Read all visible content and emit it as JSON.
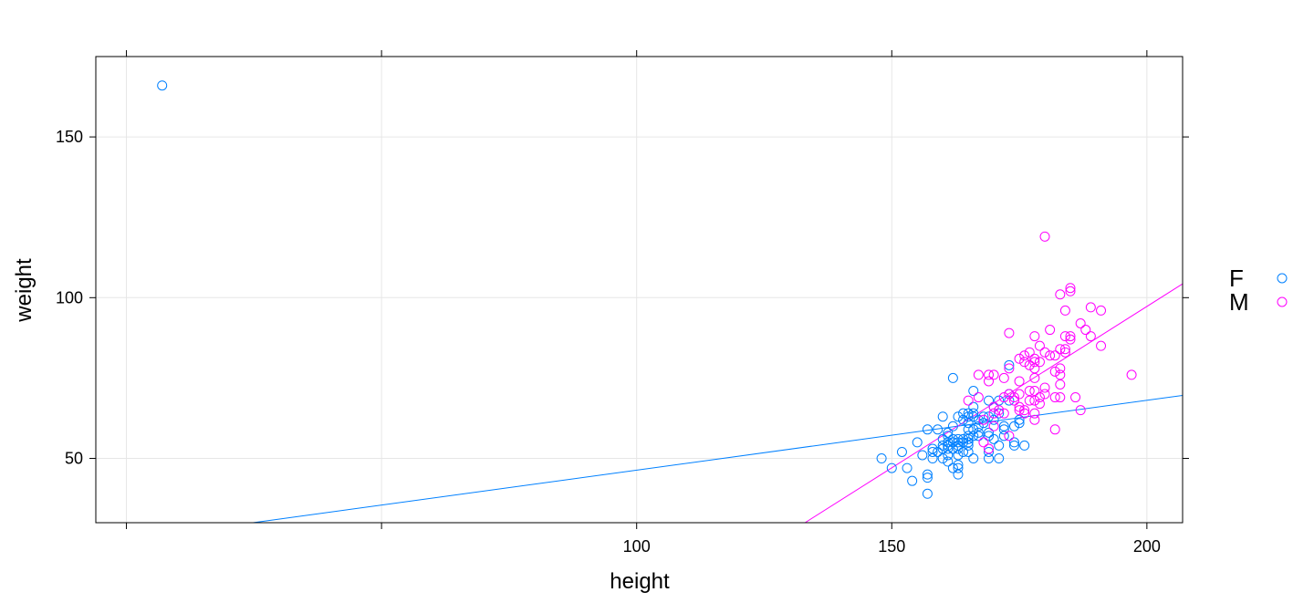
{
  "chart_data": {
    "type": "scatter",
    "xlabel": "height",
    "ylabel": "weight",
    "xlim": [
      -6,
      207
    ],
    "ylim": [
      30,
      175
    ],
    "xticks": [
      100,
      150,
      200
    ],
    "yticks": [
      50,
      100,
      150
    ],
    "xtick_marks": [
      0,
      50,
      100,
      150,
      200
    ],
    "grid": true,
    "legend_position": "right",
    "series": [
      {
        "name": "F",
        "color": "#0080ff",
        "points": [
          [
            7,
            166
          ],
          [
            148,
            50
          ],
          [
            150,
            47
          ],
          [
            152,
            52
          ],
          [
            153,
            47
          ],
          [
            154,
            43
          ],
          [
            155,
            55
          ],
          [
            156,
            51
          ],
          [
            157,
            59
          ],
          [
            157,
            45
          ],
          [
            157,
            44
          ],
          [
            157,
            39
          ],
          [
            158,
            53
          ],
          [
            158,
            52
          ],
          [
            158,
            50
          ],
          [
            159,
            59
          ],
          [
            159,
            52
          ],
          [
            160,
            63
          ],
          [
            160,
            56
          ],
          [
            160,
            54
          ],
          [
            160,
            53
          ],
          [
            160,
            50
          ],
          [
            161,
            58
          ],
          [
            161,
            57
          ],
          [
            161,
            55
          ],
          [
            161,
            54
          ],
          [
            161,
            53
          ],
          [
            161,
            51
          ],
          [
            161,
            49
          ],
          [
            162,
            75
          ],
          [
            162,
            60
          ],
          [
            162,
            56
          ],
          [
            162,
            55
          ],
          [
            162,
            53
          ],
          [
            162,
            47
          ],
          [
            163,
            63
          ],
          [
            163,
            56
          ],
          [
            163,
            55
          ],
          [
            163,
            54
          ],
          [
            163,
            53
          ],
          [
            163,
            51
          ],
          [
            163,
            48
          ],
          [
            163,
            47
          ],
          [
            163,
            45
          ],
          [
            164,
            64
          ],
          [
            164,
            62
          ],
          [
            164,
            56
          ],
          [
            164,
            55
          ],
          [
            164,
            52
          ],
          [
            165,
            64
          ],
          [
            165,
            63
          ],
          [
            165,
            61
          ],
          [
            165,
            59
          ],
          [
            165,
            57
          ],
          [
            165,
            56
          ],
          [
            165,
            55
          ],
          [
            165,
            54
          ],
          [
            165,
            52
          ],
          [
            166,
            71
          ],
          [
            166,
            66
          ],
          [
            166,
            64
          ],
          [
            166,
            63
          ],
          [
            166,
            59
          ],
          [
            166,
            57
          ],
          [
            166,
            50
          ],
          [
            167,
            62
          ],
          [
            167,
            60
          ],
          [
            167,
            58
          ],
          [
            167,
            57
          ],
          [
            168,
            63
          ],
          [
            168,
            61
          ],
          [
            169,
            68
          ],
          [
            169,
            63
          ],
          [
            169,
            58
          ],
          [
            169,
            57
          ],
          [
            169,
            52
          ],
          [
            169,
            50
          ],
          [
            170,
            66
          ],
          [
            170,
            62
          ],
          [
            170,
            56
          ],
          [
            171,
            68
          ],
          [
            171,
            64
          ],
          [
            171,
            54
          ],
          [
            171,
            50
          ],
          [
            172,
            60
          ],
          [
            172,
            59
          ],
          [
            172,
            57
          ],
          [
            173,
            79
          ],
          [
            173,
            70
          ],
          [
            173,
            68
          ],
          [
            174,
            60
          ],
          [
            174,
            55
          ],
          [
            174,
            54
          ],
          [
            175,
            62
          ],
          [
            175,
            61
          ],
          [
            176,
            54
          ]
        ],
        "fit": [
          -6,
          23.3,
          207,
          69.6
        ]
      },
      {
        "name": "M",
        "color": "#ff00ff",
        "points": [
          [
            165,
            68
          ],
          [
            167,
            76
          ],
          [
            167,
            69
          ],
          [
            168,
            55
          ],
          [
            168,
            62
          ],
          [
            169,
            76
          ],
          [
            169,
            74
          ],
          [
            169,
            53
          ],
          [
            170,
            76
          ],
          [
            170,
            66
          ],
          [
            170,
            64
          ],
          [
            170,
            60
          ],
          [
            171,
            65
          ],
          [
            172,
            75
          ],
          [
            172,
            69
          ],
          [
            172,
            64
          ],
          [
            173,
            89
          ],
          [
            173,
            78
          ],
          [
            173,
            70
          ],
          [
            173,
            57
          ],
          [
            174,
            69
          ],
          [
            174,
            68
          ],
          [
            175,
            81
          ],
          [
            175,
            74
          ],
          [
            175,
            70
          ],
          [
            175,
            66
          ],
          [
            175,
            65
          ],
          [
            176,
            82
          ],
          [
            176,
            80
          ],
          [
            176,
            65
          ],
          [
            176,
            64
          ],
          [
            177,
            83
          ],
          [
            177,
            79
          ],
          [
            177,
            71
          ],
          [
            177,
            68
          ],
          [
            178,
            88
          ],
          [
            178,
            81
          ],
          [
            178,
            80
          ],
          [
            178,
            78
          ],
          [
            178,
            75
          ],
          [
            178,
            71
          ],
          [
            178,
            68
          ],
          [
            178,
            64
          ],
          [
            178,
            62
          ],
          [
            179,
            85
          ],
          [
            179,
            80
          ],
          [
            179,
            69
          ],
          [
            179,
            67
          ],
          [
            180,
            119
          ],
          [
            180,
            83
          ],
          [
            180,
            72
          ],
          [
            180,
            70
          ],
          [
            181,
            90
          ],
          [
            181,
            82
          ],
          [
            182,
            82
          ],
          [
            182,
            77
          ],
          [
            182,
            69
          ],
          [
            182,
            59
          ],
          [
            183,
            101
          ],
          [
            183,
            84
          ],
          [
            183,
            78
          ],
          [
            183,
            76
          ],
          [
            183,
            73
          ],
          [
            183,
            69
          ],
          [
            184,
            96
          ],
          [
            184,
            88
          ],
          [
            184,
            84
          ],
          [
            184,
            83
          ],
          [
            185,
            103
          ],
          [
            185,
            102
          ],
          [
            185,
            88
          ],
          [
            185,
            87
          ],
          [
            186,
            69
          ],
          [
            187,
            92
          ],
          [
            187,
            65
          ],
          [
            188,
            90
          ],
          [
            189,
            97
          ],
          [
            189,
            88
          ],
          [
            191,
            96
          ],
          [
            191,
            85
          ],
          [
            197,
            76
          ]
        ],
        "fit": [
          133,
          30,
          207,
          104.3
        ]
      }
    ]
  }
}
